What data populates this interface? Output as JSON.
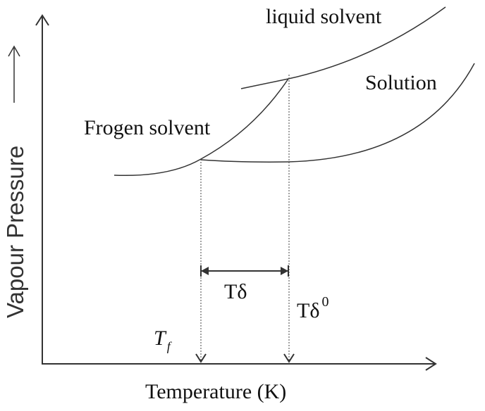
{
  "labels": {
    "liquid_solvent": "liquid solvent",
    "solution": "Solution",
    "frozen_solvent": "Frogen solvent",
    "t_delta": "Tδ",
    "t_delta_zero": "Tδ",
    "t_delta_zero_sup": "0",
    "t_f": "T",
    "t_f_sub": "f",
    "x_axis": "Temperature (K)",
    "y_axis": "Vapour Pressure"
  }
}
